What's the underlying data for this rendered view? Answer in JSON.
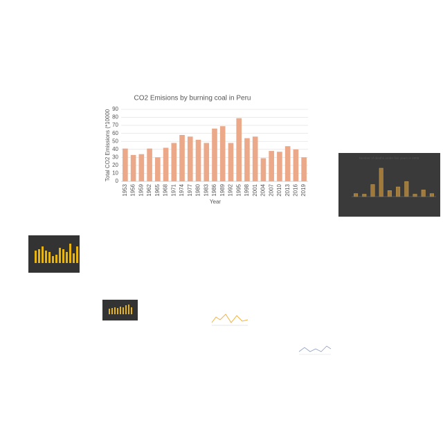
{
  "chart_data": [
    {
      "type": "bar",
      "title": "CO2 Emisions by burning coal in Peru",
      "x_label": "Year",
      "y_label": "Total CO2 Emissions (*10000",
      "categories": [
        "1953",
        "1956",
        "1959",
        "1962",
        "1965",
        "1968",
        "1971",
        "1974",
        "1977",
        "1980",
        "1983",
        "1986",
        "1989",
        "1992",
        "1995",
        "1998",
        "2001",
        "2004",
        "2007",
        "2010",
        "2013",
        "2016",
        "2019"
      ],
      "values": [
        41,
        33,
        34,
        41,
        30,
        42,
        48,
        58,
        56,
        52,
        48,
        66,
        69,
        48,
        79,
        54,
        56,
        29,
        38,
        37,
        44,
        40,
        30
      ],
      "color": "#eba98a",
      "ylim": [
        0,
        90
      ],
      "yticks": [
        0,
        10,
        20,
        30,
        40,
        50,
        60,
        70,
        80,
        90
      ],
      "grid": true
    },
    {
      "type": "bar",
      "title": "Number of deaths under five years in 2005",
      "values": [
        5,
        4,
        20,
        47,
        10,
        16,
        25,
        4,
        11,
        5
      ],
      "color": "#a07a3c",
      "ylim": [
        0,
        55
      ]
    }
  ]
}
